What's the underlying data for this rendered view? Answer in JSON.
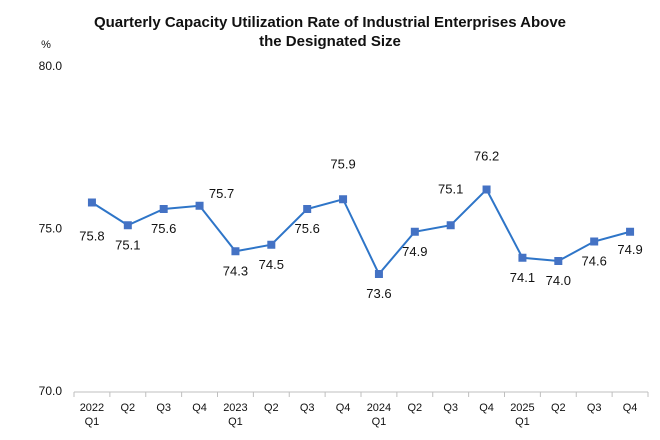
{
  "chart_data": {
    "type": "line",
    "title_lines": [
      "Quarterly Capacity Utilization Rate of Industrial Enterprises Above",
      "the Designated Size"
    ],
    "ylabel": "%",
    "xlabel": "",
    "ylim": [
      70.0,
      80.0
    ],
    "yticks": [
      "70.0",
      "75.0",
      "80.0"
    ],
    "grid": false,
    "categories": [
      [
        "2022",
        "Q1"
      ],
      [
        "Q2"
      ],
      [
        "Q3"
      ],
      [
        "Q4"
      ],
      [
        "2023",
        "Q1"
      ],
      [
        "Q2"
      ],
      [
        "Q3"
      ],
      [
        "Q4"
      ],
      [
        "2024",
        "Q1"
      ],
      [
        "Q2"
      ],
      [
        "Q3"
      ],
      [
        "Q4"
      ],
      [
        "2025",
        "Q1"
      ],
      [
        "Q2"
      ],
      [
        "Q3"
      ],
      [
        "Q4"
      ]
    ],
    "series": [
      {
        "values": [
          75.8,
          75.1,
          75.6,
          75.7,
          74.3,
          74.5,
          75.6,
          75.9,
          73.6,
          74.9,
          75.1,
          76.2,
          74.1,
          74.0,
          74.6,
          74.9
        ],
        "labels": [
          "75.8",
          "75.1",
          "75.6",
          "75.7",
          "74.3",
          "74.5",
          "75.6",
          "75.9",
          "73.6",
          "74.9",
          "75.1",
          "76.2",
          "74.1",
          "74.0",
          "74.6",
          "74.9"
        ],
        "color": "#2E75C8",
        "marker_color": "#4472C4",
        "marker": "square"
      }
    ]
  }
}
